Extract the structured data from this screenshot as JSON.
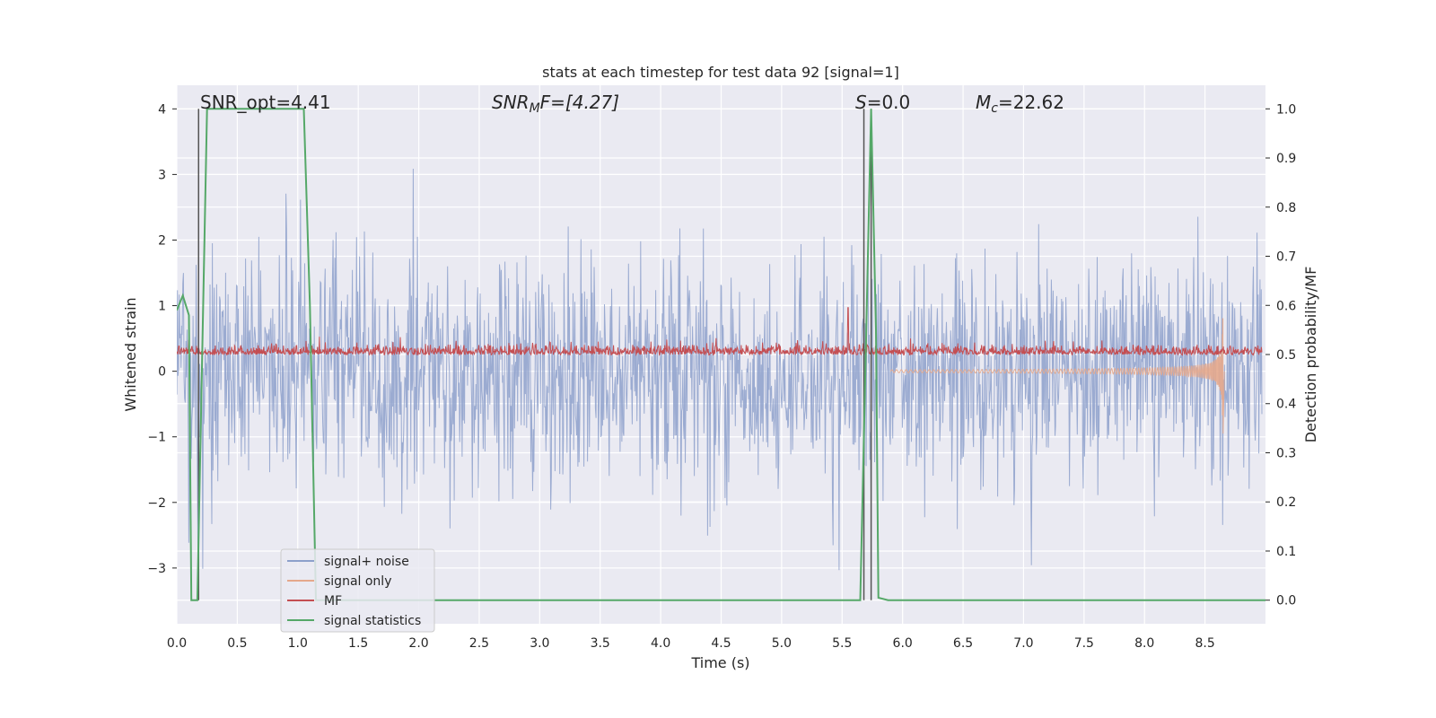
{
  "chart_data": {
    "type": "line",
    "title": "stats at each timestep for test data 92 [signal=1]",
    "xlabel": "Time (s)",
    "ylabel": "Whitened strain",
    "y2label": "Detection probability/MF",
    "xlim": [
      0.0,
      9.0
    ],
    "ylim": [
      -3.85,
      4.36
    ],
    "y2lim": [
      -0.048,
      1.048
    ],
    "xticks": [
      "0.0",
      "0.5",
      "1.0",
      "1.5",
      "2.0",
      "2.5",
      "3.0",
      "3.5",
      "4.0",
      "4.5",
      "5.0",
      "5.5",
      "6.0",
      "6.5",
      "7.0",
      "7.5",
      "8.0",
      "8.5"
    ],
    "yticks": [
      "4",
      "3",
      "2",
      "1",
      "0",
      "−1",
      "−2",
      "−3"
    ],
    "y2ticks": [
      "1.0",
      "0.9",
      "0.8",
      "0.7",
      "0.6",
      "0.5",
      "0.4",
      "0.3",
      "0.2",
      "0.1",
      "0.0"
    ],
    "grid": true,
    "legend_position": "lower-left",
    "annotations": {
      "snr_opt": "SNR_opt=4.41",
      "snr_mf": "SNR",
      "snr_mf_sub": "M",
      "snr_mf_rest": "F=[4.27]",
      "s_stat": "S",
      "s_rest": "=0.0",
      "mc": "M",
      "mc_sub": "c",
      "mc_rest": "=22.62"
    },
    "series": [
      {
        "name": "signal+ noise",
        "color": "#8da0cb",
        "amplitude_range": [
          -3.5,
          4.0
        ]
      },
      {
        "name": "signal only",
        "color": "#e5a88c",
        "chirp_end_time": 8.65,
        "chirp_min": -0.95
      },
      {
        "name": "MF",
        "color": "#c44e52",
        "baseline": 0.25,
        "peak": 0.97
      },
      {
        "name": "signal statistics",
        "color": "#55a868",
        "x": [
          0.0,
          0.05,
          0.1,
          0.12,
          0.17,
          0.25,
          0.9,
          1.05,
          1.1,
          1.15,
          5.65,
          5.7,
          5.74,
          5.78,
          5.8,
          5.88,
          9.0
        ],
        "y": [
          0.59,
          0.62,
          0.58,
          0.0,
          0.0,
          1.0,
          1.0,
          1.0,
          0.6,
          0.0,
          0.0,
          0.55,
          1.0,
          0.55,
          0.005,
          0.0,
          0.0
        ]
      }
    ],
    "vertical_markers": [
      0.18,
      5.68,
      5.74
    ]
  }
}
